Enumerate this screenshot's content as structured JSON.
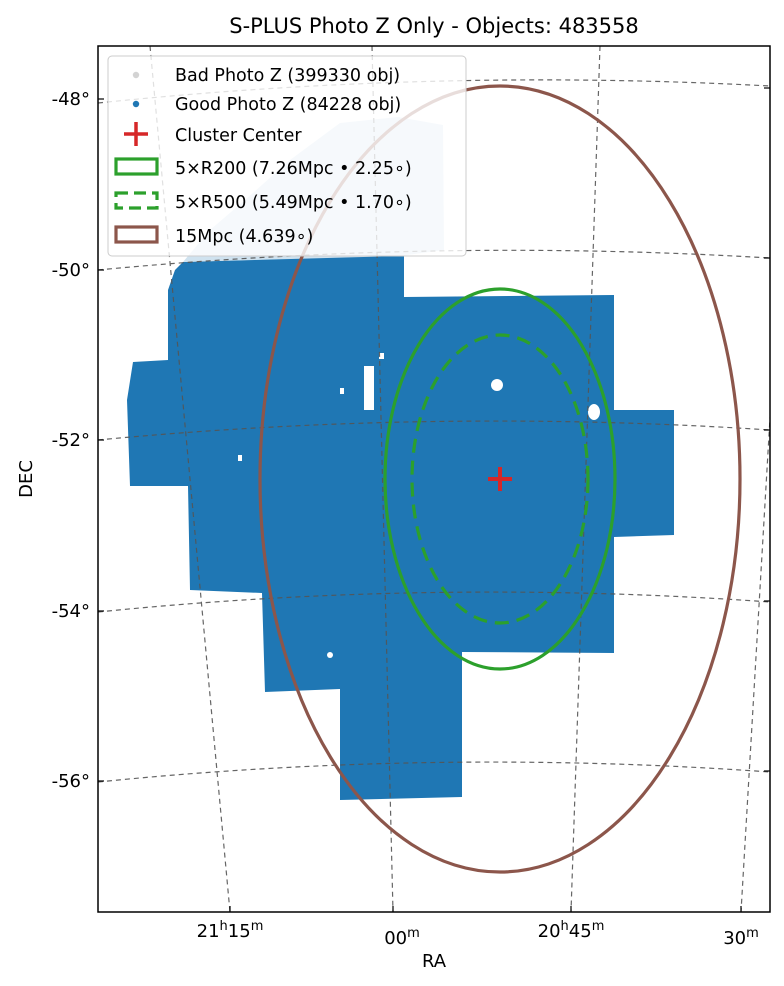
{
  "chart_data": {
    "type": "scatter",
    "title": "S-PLUS Photo Z Only - Objects: 483558",
    "xlabel": "RA",
    "ylabel": "DEC",
    "projection": "sky (RA / DEC)",
    "grid": true,
    "legend_position": "top-left",
    "dec_ticks": [
      "-48°",
      "-50°",
      "-52°",
      "-54°",
      "-56°"
    ],
    "dec_tick_values": [
      -48,
      -50,
      -52,
      -54,
      -56
    ],
    "ra_ticks": [
      {
        "h": "21",
        "hs": "h",
        "m": "15",
        "ms": "m"
      },
      {
        "h": "",
        "hs": "",
        "m": "00",
        "ms": "m"
      },
      {
        "h": "20",
        "hs": "h",
        "m": "45",
        "ms": "m"
      },
      {
        "h": "",
        "hs": "",
        "m": "30",
        "ms": "m"
      }
    ],
    "ra_tick_values_hours": [
      21.25,
      21.0,
      20.75,
      20.5
    ],
    "legend": [
      {
        "key": "bad",
        "label": "Bad Photo Z (399330 obj)",
        "color": "#d3d3d3"
      },
      {
        "key": "good",
        "label": "Good Photo Z (84228 obj)",
        "color": "#1f77b4"
      },
      {
        "key": "center",
        "label": "Cluster Center",
        "color": "#d62728"
      },
      {
        "key": "r200",
        "label": "5×R200 (7.26Mpc • 2.25∘)",
        "color": "#2ca02c"
      },
      {
        "key": "r500",
        "label": "5×R500 (5.49Mpc • 1.70∘)",
        "color": "#2ca02c"
      },
      {
        "key": "mpc15",
        "label": "15Mpc (4.639∘)",
        "color": "#8c564b"
      }
    ],
    "series": [
      {
        "name": "Bad Photo Z",
        "count": 399330,
        "color": "#d3d3d3"
      },
      {
        "name": "Good Photo Z",
        "count": 84228,
        "color": "#1f77b4"
      }
    ],
    "cluster_center": {
      "ra_hours": 20.86,
      "dec": -52.45
    },
    "circles": [
      {
        "name": "5×R200",
        "radius_deg": 2.25,
        "style": "solid",
        "color": "#2ca02c"
      },
      {
        "name": "5×R500",
        "radius_deg": 1.7,
        "style": "dashed",
        "color": "#2ca02c"
      },
      {
        "name": "15Mpc",
        "radius_deg": 4.639,
        "style": "solid",
        "color": "#8c564b"
      }
    ]
  }
}
